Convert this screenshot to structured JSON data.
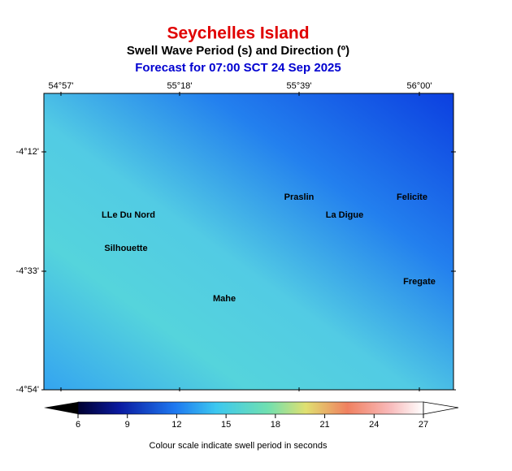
{
  "header": {
    "title": "Seychelles Island",
    "subtitle": "Swell Wave Period (s) and Direction (º)",
    "forecast": "Forecast for  07:00 SCT 24 Sep 2025"
  },
  "map": {
    "lon_labels": [
      "54°57'",
      "55°18'",
      "55°39'",
      "56°00'"
    ],
    "lat_labels": [
      "-4°12'",
      "-4°33'",
      "-4°54'"
    ],
    "places": [
      "Praslin",
      "Felicite",
      "LLe Du Nord",
      "La Digue",
      "Silhouette",
      "Fregate",
      "Mahe"
    ]
  },
  "colorbar": {
    "ticks": [
      6,
      9,
      12,
      15,
      18,
      21,
      24,
      27
    ],
    "lim": [
      6,
      27
    ],
    "caption": "Colour scale indicate swell period in seconds"
  }
}
